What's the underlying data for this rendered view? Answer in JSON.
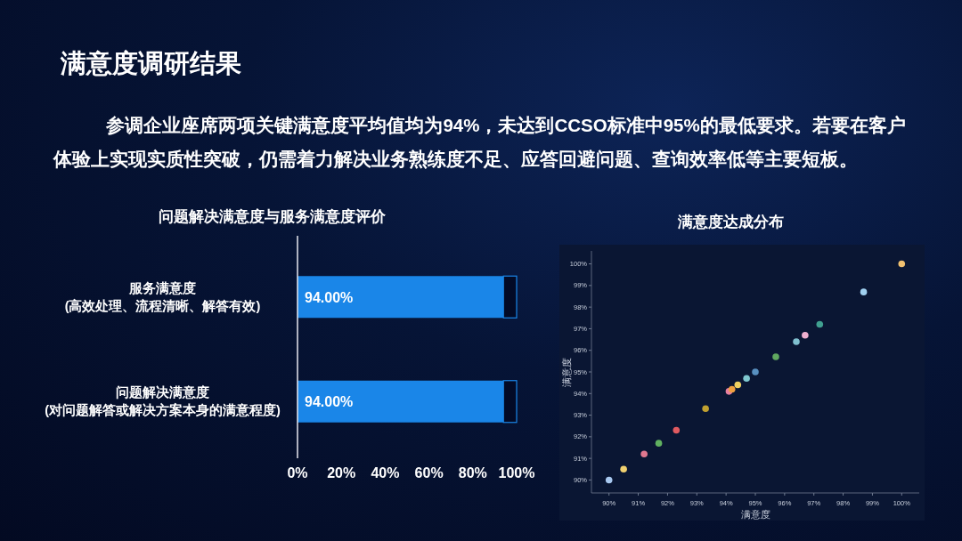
{
  "chart_data": [
    {
      "type": "other",
      "title": "满意度调研结果",
      "annotations": [
        "参调企业座席两项关键满意度平均值均为94%，未达到CCSO标准中95%的最低要求。若要在客户体验上实现实质性突破，仍需着力解决业务熟练度不足、应答回避问题、查询效率低等主要短板。"
      ]
    },
    {
      "type": "bar",
      "orientation": "horizontal",
      "stacked": true,
      "title": "问题解决满意度与服务满意度评价",
      "categories": [
        "服务满意度\n(高效处理、流程清晰、解答有效)",
        "问题解决满意度\n(对问题解答或解决方案本身的满意程度)"
      ],
      "series": [
        {
          "color": "#1a86e8",
          "values": [
            94,
            94
          ],
          "value_labels": [
            "94.00%",
            "94.00%"
          ]
        },
        {
          "color": "#020a26",
          "values": [
            6,
            6
          ]
        }
      ],
      "xlim": [
        0,
        100
      ],
      "xticks": [
        {
          "value": 0,
          "label": "0%"
        },
        {
          "value": 20,
          "label": "20%"
        },
        {
          "value": 40,
          "label": "40%"
        },
        {
          "value": 60,
          "label": "60%"
        },
        {
          "value": 80,
          "label": "80%"
        },
        {
          "value": 100,
          "label": "100%"
        }
      ]
    },
    {
      "type": "scatter",
      "title": "满意度达成分布",
      "xlabel": "满意度",
      "ylabel": "满意度",
      "marker": "circle",
      "x": [
        90.0,
        90.5,
        91.2,
        91.7,
        92.3,
        93.3,
        94.1,
        94.2,
        94.4,
        94.7,
        95.0,
        95.7,
        96.4,
        96.7,
        97.2,
        98.7,
        100.0
      ],
      "values": [
        90.0,
        90.5,
        91.2,
        91.7,
        92.3,
        93.3,
        94.1,
        94.2,
        94.4,
        94.7,
        95.0,
        95.7,
        96.4,
        96.7,
        97.2,
        98.7,
        100.0
      ],
      "colors": [
        "#a8c8f0",
        "#f0d070",
        "#e07890",
        "#60b060",
        "#e05a60",
        "#c0a030",
        "#e880a0",
        "#f0a040",
        "#f0d060",
        "#80c8d0",
        "#5890c0",
        "#60a860",
        "#80c0d0",
        "#f0b0d0",
        "#40a090",
        "#a0d0f0",
        "#f0c070"
      ],
      "xlim": [
        89.4,
        100.6
      ],
      "ylim": [
        89.4,
        100.6
      ],
      "xticks": [
        {
          "value": 90,
          "label": "90%"
        },
        {
          "value": 91,
          "label": "91%"
        },
        {
          "value": 92,
          "label": "92%"
        },
        {
          "value": 93,
          "label": "93%"
        },
        {
          "value": 94,
          "label": "94%"
        },
        {
          "value": 95,
          "label": "95%"
        },
        {
          "value": 96,
          "label": "96%"
        },
        {
          "value": 97,
          "label": "97%"
        },
        {
          "value": 98,
          "label": "98%"
        },
        {
          "value": 99,
          "label": "99%"
        },
        {
          "value": 100,
          "label": "100%"
        }
      ],
      "yticks": [
        {
          "value": 90,
          "label": "90%"
        },
        {
          "value": 91,
          "label": "91%"
        },
        {
          "value": 92,
          "label": "92%"
        },
        {
          "value": 93,
          "label": "93%"
        },
        {
          "value": 94,
          "label": "94%"
        },
        {
          "value": 95,
          "label": "95%"
        },
        {
          "value": 96,
          "label": "96%"
        },
        {
          "value": 97,
          "label": "97%"
        },
        {
          "value": 98,
          "label": "98%"
        },
        {
          "value": 99,
          "label": "99%"
        },
        {
          "value": 100,
          "label": "100%"
        }
      ]
    }
  ]
}
